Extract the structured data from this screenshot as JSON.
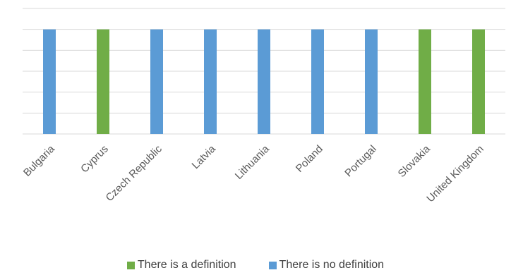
{
  "chart_data": {
    "type": "bar",
    "categories": [
      "Bulgaria",
      "Cyprus",
      "Czech Republic",
      "Latvia",
      "Lithuania",
      "Poland",
      "Portugal",
      "Slovakia",
      "United Kingdom"
    ],
    "series": [
      {
        "name": "There is a definition",
        "color": "#70AD47",
        "values": [
          0,
          1,
          0,
          0,
          0,
          0,
          0,
          1,
          1
        ]
      },
      {
        "name": "There is no definition",
        "color": "#5B9BD5",
        "values": [
          1,
          0,
          1,
          1,
          1,
          1,
          1,
          0,
          0
        ]
      }
    ],
    "ylim": [
      0,
      1.2
    ],
    "grid": true,
    "legend_position": "bottom",
    "title": "",
    "xlabel": "",
    "ylabel": ""
  }
}
